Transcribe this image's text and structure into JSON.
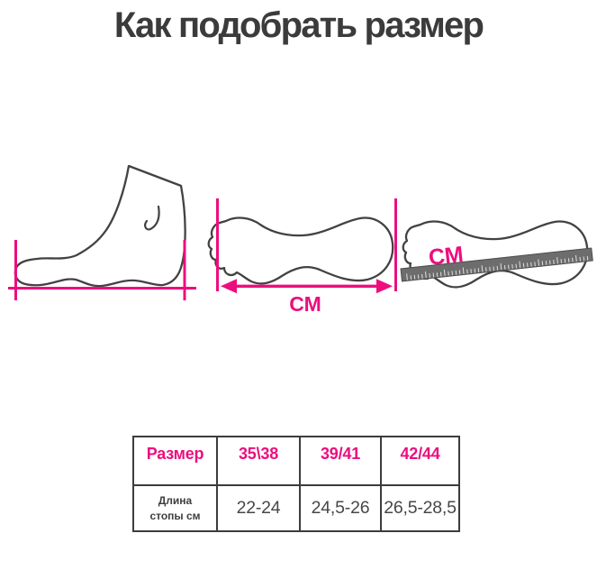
{
  "title": "Как подобрать размер",
  "labels": {
    "cm_footprint": "СМ",
    "cm_ruler": "СМ"
  },
  "colors": {
    "accent_pink": "#ec0e7e",
    "outline_dark": "#424242",
    "ruler_gray": "#6d6d6d",
    "title_text": "#3b3b3b",
    "value_text": "#474747"
  },
  "table": {
    "header": [
      "Размер",
      "35\\38",
      "39/41",
      "42/44"
    ],
    "rows": [
      [
        "Длина стопы см",
        "22-24",
        "24,5-26",
        "26,5-28,5"
      ]
    ]
  }
}
